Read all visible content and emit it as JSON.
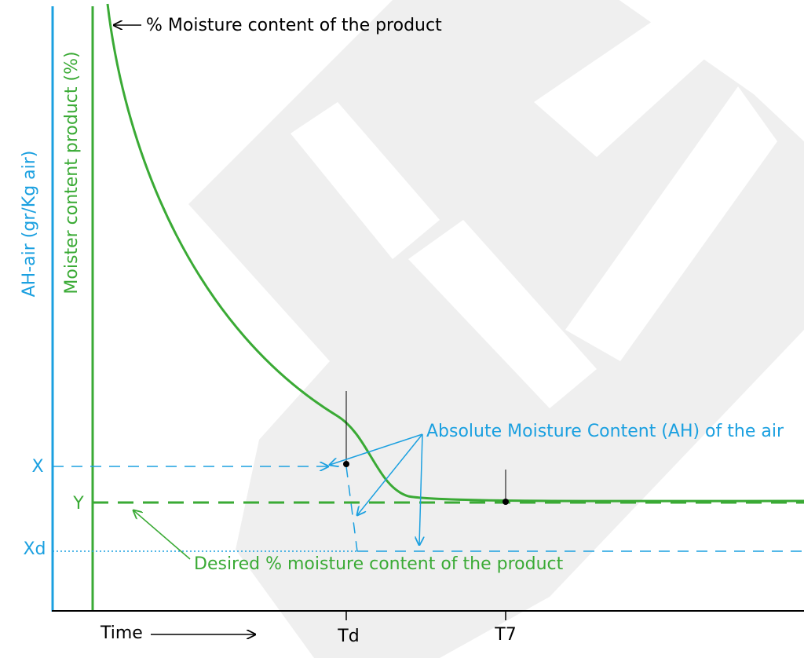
{
  "axes": {
    "y_left_label": "AH-air (gr/Kg air)",
    "y_inner_label": "Moister content product (%)",
    "x_label": "Time"
  },
  "y_markers": [
    "X",
    "Y",
    "Xd"
  ],
  "x_markers": [
    "Td",
    "T7"
  ],
  "annotations": {
    "moisture_curve": "% Moisture content of the product",
    "absolute_moisture": "Absolute Moisture Content (AH) of the air",
    "desired": "Desired % moisture content of the product"
  }
}
